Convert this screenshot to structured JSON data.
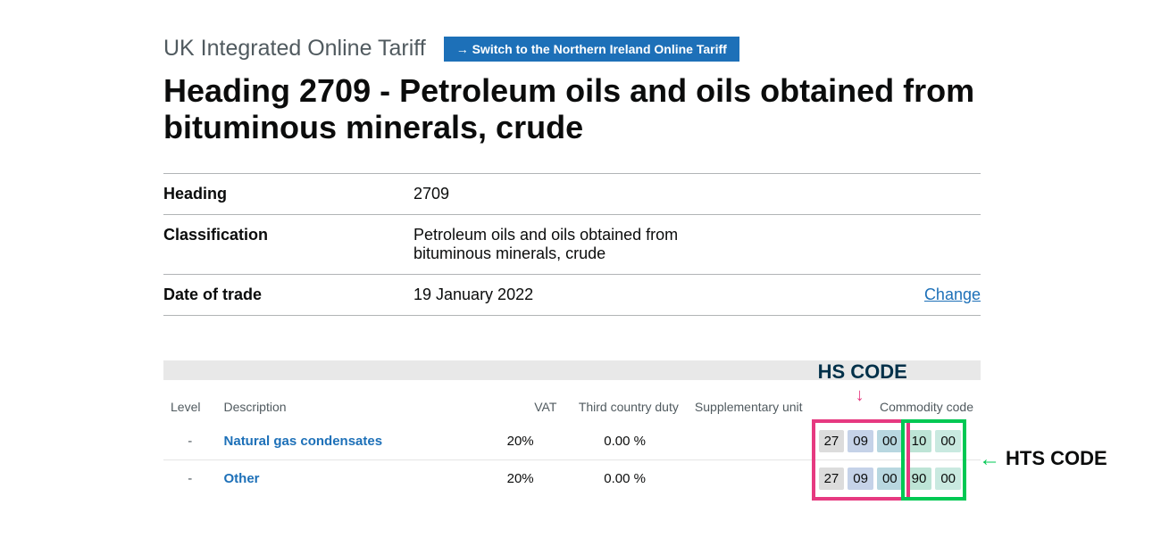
{
  "header": {
    "service_name": "UK Integrated Online Tariff",
    "switch_label": "→ Switch to the Northern Ireland Online Tariff"
  },
  "page_title": "Heading 2709 - Petroleum oils and oils obtained from bituminous minerals, crude",
  "summary": {
    "heading_key": "Heading",
    "heading_value": "2709",
    "classification_key": "Classification",
    "classification_value": "Petroleum oils and oils obtained from bituminous minerals, crude",
    "date_key": "Date of trade",
    "date_value": "19 January 2022",
    "change_label": "Change"
  },
  "table": {
    "columns": {
      "level": "Level",
      "description": "Description",
      "vat": "VAT",
      "third_country": "Third country duty",
      "supp_unit": "Supplementary unit",
      "commodity_code": "Commodity code"
    },
    "rows": [
      {
        "level": "-",
        "description": "Natural gas condensates",
        "vat": "20%",
        "third_country_duty": "0.00 %",
        "supplementary_unit": "",
        "code_segments": [
          "27",
          "09",
          "00",
          "10",
          "00"
        ]
      },
      {
        "level": "-",
        "description": "Other",
        "vat": "20%",
        "third_country_duty": "0.00 %",
        "supplementary_unit": "",
        "code_segments": [
          "27",
          "09",
          "00",
          "90",
          "00"
        ]
      }
    ],
    "segment_colors": [
      "#dcdcdc",
      "#c5d2e8",
      "#b8d7e0",
      "#bde4d6",
      "#c9e9e0"
    ]
  },
  "annotations": {
    "hs_label": "HS CODE",
    "hts_label": "HTS CODE",
    "hs_color": "#e63980",
    "hts_color": "#00c853",
    "hs_label_color": "#003049"
  }
}
